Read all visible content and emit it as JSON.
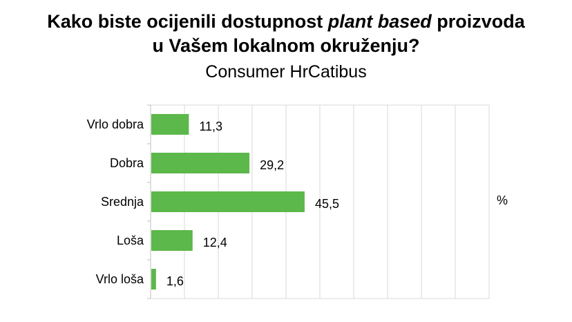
{
  "title": {
    "line1_before": "Kako biste ocijenili dostupnost ",
    "line1_italic": "plant based",
    "line1_after": " proizvoda",
    "line2": "u Vašem lokalnom okruženju?"
  },
  "subtitle": "Consumer HrCatibus",
  "chart_data": {
    "type": "bar",
    "orientation": "horizontal",
    "categories": [
      "Vrlo dobra",
      "Dobra",
      "Srednja",
      "Loša",
      "Vrlo loša"
    ],
    "values": [
      11.3,
      29.2,
      45.5,
      12.4,
      1.6
    ],
    "value_labels": [
      "11,3",
      "29,2",
      "45,5",
      "12,4",
      "1,6"
    ],
    "unit_label": "%",
    "xlim": [
      0,
      100
    ],
    "grid": true,
    "bar_color": "#5cb84a"
  }
}
